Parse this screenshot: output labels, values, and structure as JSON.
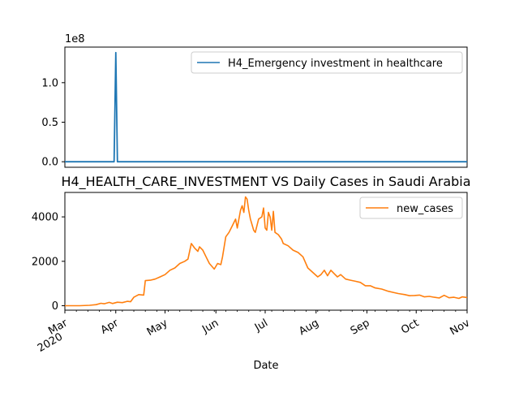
{
  "chart_data": [
    {
      "type": "line",
      "title": "",
      "xlabel": "",
      "ylabel": "",
      "y_offset_label": "1e8",
      "yticks": [
        0.0,
        0.5,
        1.0
      ],
      "ytick_labels": [
        "0.0",
        "0.5",
        "1.0"
      ],
      "ylim": [
        -0.07,
        1.45
      ],
      "xlim": [
        "2020-03-01",
        "2020-11-01"
      ],
      "legend_position": "upper right",
      "series": [
        {
          "name": "H4_Emergency investment in healthcare",
          "color": "#1f77b4",
          "points": [
            [
              "2020-03-01",
              0
            ],
            [
              "2020-03-31",
              0
            ],
            [
              "2020-04-01",
              1.38
            ],
            [
              "2020-04-02",
              0
            ],
            [
              "2020-11-01",
              0
            ]
          ]
        }
      ]
    },
    {
      "type": "line",
      "title": "H4_HEALTH_CARE_INVESTMENT VS Daily Cases in Saudi Arabia",
      "xlabel": "Date",
      "ylabel": "",
      "yticks": [
        0,
        2000,
        4000
      ],
      "ytick_labels": [
        "0",
        "2000",
        "4000"
      ],
      "ylim": [
        -200,
        5100
      ],
      "xlim": [
        "2020-03-01",
        "2020-11-01"
      ],
      "xtick_labels": [
        {
          "date": "2020-03-01",
          "label": "Mar",
          "sub": "2020"
        },
        {
          "date": "2020-04-01",
          "label": "Apr"
        },
        {
          "date": "2020-05-01",
          "label": "May"
        },
        {
          "date": "2020-06-01",
          "label": "Jun"
        },
        {
          "date": "2020-07-01",
          "label": "Jul"
        },
        {
          "date": "2020-08-01",
          "label": "Aug"
        },
        {
          "date": "2020-09-01",
          "label": "Sep"
        },
        {
          "date": "2020-10-01",
          "label": "Oct"
        },
        {
          "date": "2020-11-01",
          "label": "Nov"
        }
      ],
      "legend_position": "upper right",
      "series": [
        {
          "name": "new_cases",
          "color": "#ff7f0e",
          "points": [
            [
              "2020-03-01",
              0
            ],
            [
              "2020-03-10",
              0
            ],
            [
              "2020-03-16",
              20
            ],
            [
              "2020-03-20",
              50
            ],
            [
              "2020-03-23",
              110
            ],
            [
              "2020-03-25",
              90
            ],
            [
              "2020-03-28",
              150
            ],
            [
              "2020-03-30",
              100
            ],
            [
              "2020-04-02",
              160
            ],
            [
              "2020-04-05",
              140
            ],
            [
              "2020-04-08",
              200
            ],
            [
              "2020-04-10",
              180
            ],
            [
              "2020-04-12",
              380
            ],
            [
              "2020-04-15",
              500
            ],
            [
              "2020-04-18",
              480
            ],
            [
              "2020-04-19",
              1130
            ],
            [
              "2020-04-22",
              1150
            ],
            [
              "2020-04-25",
              1200
            ],
            [
              "2020-04-28",
              1300
            ],
            [
              "2020-05-01",
              1400
            ],
            [
              "2020-05-04",
              1600
            ],
            [
              "2020-05-07",
              1700
            ],
            [
              "2020-05-10",
              1900
            ],
            [
              "2020-05-13",
              2000
            ],
            [
              "2020-05-15",
              2100
            ],
            [
              "2020-05-17",
              2800
            ],
            [
              "2020-05-19",
              2600
            ],
            [
              "2020-05-21",
              2450
            ],
            [
              "2020-05-22",
              2650
            ],
            [
              "2020-05-24",
              2500
            ],
            [
              "2020-05-26",
              2200
            ],
            [
              "2020-05-28",
              1900
            ],
            [
              "2020-05-31",
              1650
            ],
            [
              "2020-06-02",
              1900
            ],
            [
              "2020-06-04",
              1850
            ],
            [
              "2020-06-05",
              2200
            ],
            [
              "2020-06-07",
              3100
            ],
            [
              "2020-06-09",
              3300
            ],
            [
              "2020-06-11",
              3600
            ],
            [
              "2020-06-13",
              3900
            ],
            [
              "2020-06-14",
              3500
            ],
            [
              "2020-06-16",
              4300
            ],
            [
              "2020-06-17",
              4500
            ],
            [
              "2020-06-18",
              4200
            ],
            [
              "2020-06-19",
              4900
            ],
            [
              "2020-06-20",
              4800
            ],
            [
              "2020-06-21",
              4300
            ],
            [
              "2020-06-22",
              3900
            ],
            [
              "2020-06-24",
              3400
            ],
            [
              "2020-06-25",
              3300
            ],
            [
              "2020-06-27",
              3900
            ],
            [
              "2020-06-29",
              4000
            ],
            [
              "2020-06-30",
              4400
            ],
            [
              "2020-07-01",
              3500
            ],
            [
              "2020-07-02",
              3400
            ],
            [
              "2020-07-03",
              4200
            ],
            [
              "2020-07-04",
              4000
            ],
            [
              "2020-07-05",
              3400
            ],
            [
              "2020-07-06",
              4250
            ],
            [
              "2020-07-07",
              3300
            ],
            [
              "2020-07-09",
              3200
            ],
            [
              "2020-07-11",
              3000
            ],
            [
              "2020-07-12",
              2800
            ],
            [
              "2020-07-15",
              2700
            ],
            [
              "2020-07-18",
              2500
            ],
            [
              "2020-07-21",
              2400
            ],
            [
              "2020-07-24",
              2200
            ],
            [
              "2020-07-27",
              1700
            ],
            [
              "2020-07-30",
              1500
            ],
            [
              "2020-08-02",
              1300
            ],
            [
              "2020-08-04",
              1400
            ],
            [
              "2020-08-06",
              1600
            ],
            [
              "2020-08-08",
              1350
            ],
            [
              "2020-08-10",
              1600
            ],
            [
              "2020-08-12",
              1450
            ],
            [
              "2020-08-14",
              1300
            ],
            [
              "2020-08-16",
              1400
            ],
            [
              "2020-08-19",
              1200
            ],
            [
              "2020-08-22",
              1150
            ],
            [
              "2020-08-25",
              1100
            ],
            [
              "2020-08-28",
              1050
            ],
            [
              "2020-08-31",
              900
            ],
            [
              "2020-09-03",
              900
            ],
            [
              "2020-09-06",
              800
            ],
            [
              "2020-09-10",
              750
            ],
            [
              "2020-09-14",
              650
            ],
            [
              "2020-09-17",
              600
            ],
            [
              "2020-09-20",
              550
            ],
            [
              "2020-09-24",
              500
            ],
            [
              "2020-09-27",
              450
            ],
            [
              "2020-09-30",
              460
            ],
            [
              "2020-10-03",
              480
            ],
            [
              "2020-10-06",
              400
            ],
            [
              "2020-10-09",
              420
            ],
            [
              "2020-10-12",
              380
            ],
            [
              "2020-10-15",
              350
            ],
            [
              "2020-10-18",
              470
            ],
            [
              "2020-10-21",
              360
            ],
            [
              "2020-10-24",
              380
            ],
            [
              "2020-10-27",
              330
            ],
            [
              "2020-10-29",
              400
            ],
            [
              "2020-11-01",
              370
            ]
          ]
        }
      ]
    }
  ]
}
